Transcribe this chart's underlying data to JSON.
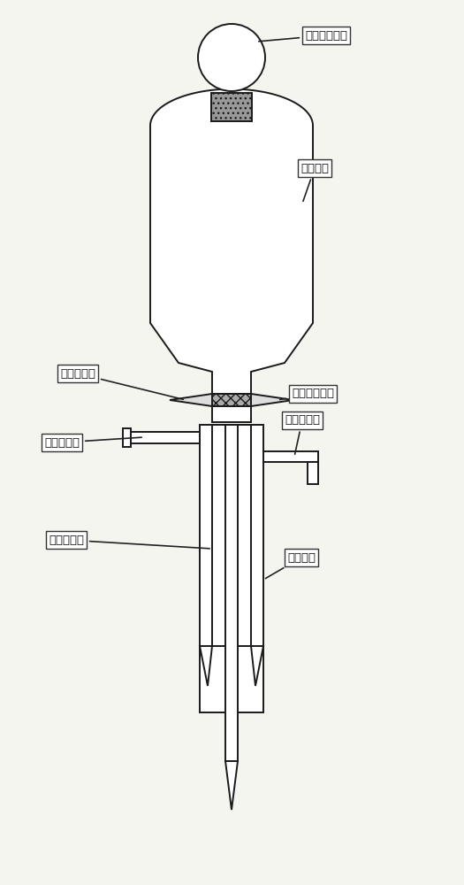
{
  "bg_color": "#f5f5f0",
  "line_color": "#1a1a1a",
  "white": "#ffffff",
  "gray_hatch": "#888888",
  "labels": {
    "mo_kou_ping_sai": "磨口玻璃瓶塞",
    "ye_ti_rong_qi": "液体容器",
    "nei_jing_jia_ye_guan": "内径加液管",
    "mo_kou_huo_sai": "磨口玻璃活塞",
    "di_yi_dao_qi_guan": "第一导气管",
    "di_er_dao_qi_guan": "第二导气管",
    "zhong_jing_dao_qi_guan": "中径导气管",
    "wai_jing_rong_qi": "外径容器"
  },
  "font_size": 9.5
}
